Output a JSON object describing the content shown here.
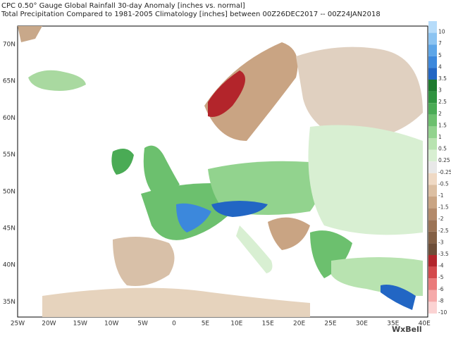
{
  "header": {
    "title_lines": [
      "CPC 0.50° Gauge Global Rainfall 30-day Anomaly [inches vs. normal]",
      "Total Precipitation Compared to 1981-2005 Climatology [inches] between 00Z26DEC2017 -- 00Z24JAN2018"
    ]
  },
  "map": {
    "lat_labels": [
      "70N",
      "65N",
      "60N",
      "55N",
      "50N",
      "45N",
      "40N",
      "35N"
    ],
    "lon_labels": [
      "25W",
      "20W",
      "15W",
      "10W",
      "5W",
      "0",
      "5E",
      "10E",
      "15E",
      "20E",
      "25E",
      "30E",
      "35E",
      "40E"
    ]
  },
  "colorbar": {
    "labels": [
      "10",
      "7",
      "5",
      "4",
      "3.5",
      "3",
      "2.5",
      "2",
      "1.5",
      "1",
      "0.5",
      "0.25",
      "-0.25",
      "-0.5",
      "-1",
      "-1.5",
      "-2",
      "-2.5",
      "-3",
      "-3.5",
      "-4",
      "-5",
      "-6",
      "-8",
      "-10"
    ],
    "colors": [
      "#b6dcfa",
      "#8cc4f2",
      "#5ea6e8",
      "#3c88dc",
      "#2266c4",
      "#1d7a2e",
      "#2f9440",
      "#4aab55",
      "#6cc06e",
      "#92d38e",
      "#b8e3b0",
      "#d8efd2",
      "#e8e8e8",
      "#efd9c4",
      "#dcbfa2",
      "#c9a483",
      "#b38a6a",
      "#9c7456",
      "#846045",
      "#6e4e38",
      "#b3252b",
      "#d44a4c",
      "#ea7a7a",
      "#f5a9a9",
      "#fbd3d3"
    ]
  },
  "logo": "WxBell"
}
